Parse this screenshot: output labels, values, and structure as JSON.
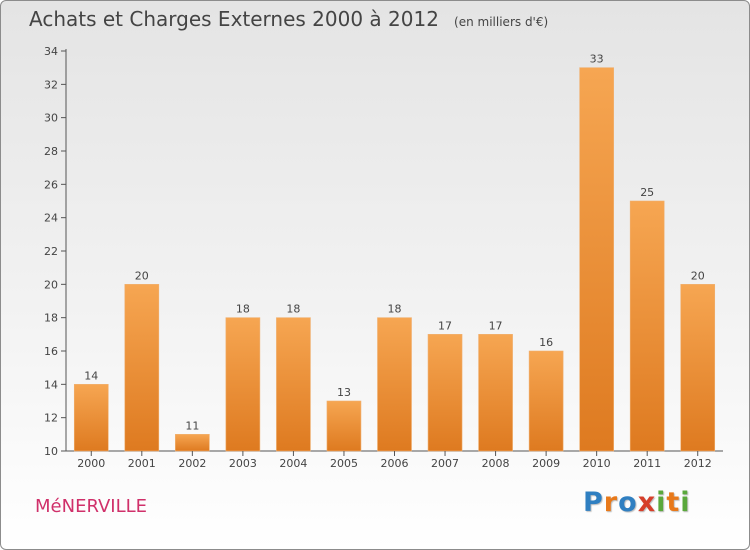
{
  "header": {
    "title": "Achats et Charges Externes 2000 à 2012",
    "unit_note": "(en milliers d'€)"
  },
  "town": "MéNERVILLE",
  "logo": {
    "text": "Proxiti",
    "letter_colors": [
      "#2f7fc1",
      "#e8791a",
      "#2f7fc1",
      "#d63f2a",
      "#5aa83c",
      "#e8791a",
      "#5aa83c"
    ]
  },
  "colors": {
    "bar_light": "#f6a652",
    "bar_dark": "#de7a20",
    "town": "#d0306a",
    "axis": "#555555"
  },
  "chart_data": {
    "type": "bar",
    "categories": [
      "2000",
      "2001",
      "2002",
      "2003",
      "2004",
      "2005",
      "2006",
      "2007",
      "2008",
      "2009",
      "2010",
      "2011",
      "2012"
    ],
    "values": [
      14,
      20,
      11,
      18,
      18,
      13,
      18,
      17,
      17,
      16,
      33,
      25,
      20
    ],
    "ylim": [
      10,
      34
    ],
    "yticks": [
      10,
      12,
      14,
      16,
      18,
      20,
      22,
      24,
      26,
      28,
      30,
      32,
      34
    ],
    "grid": false,
    "title": "Achats et Charges Externes 2000 à 2012",
    "xlabel": "",
    "ylabel": ""
  }
}
